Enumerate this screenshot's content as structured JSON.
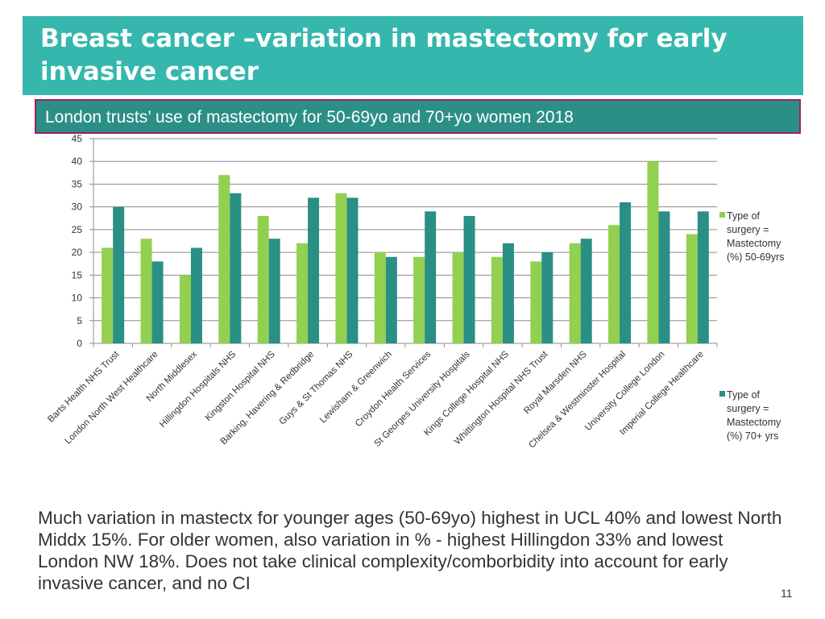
{
  "header": {
    "title": "Breast cancer –variation in mastectomy for early invasive cancer",
    "subtitle": "London trusts’ use of  mastectomy for 50-69yo and 70+yo women 2018"
  },
  "chart_data": {
    "type": "bar",
    "title": "",
    "xlabel": "",
    "ylabel": "",
    "ylim": [
      0,
      45
    ],
    "yticks": [
      0,
      5,
      10,
      15,
      20,
      25,
      30,
      35,
      40,
      45
    ],
    "grid": true,
    "categories": [
      "Barts Health NHS Trust",
      "London North West Healthcare",
      "North Middlesex",
      "Hillingdon Hospitals NHS",
      "Kingston Hospital NHS",
      "Barking, Havering & Redbridge",
      "Guys & St Thomas NHS",
      "Lewisham & Greenwich",
      "Croydon Health Services",
      "St Georges University Hospitals",
      "Kings College Hospital NHS",
      "Whittington Hospital NHS Trust",
      "Royal Marsden NHS",
      "Chelsea & Westminster Hospital",
      "University College London",
      "Imperial College Healthcare"
    ],
    "series": [
      {
        "name": "Type of surgery = Mastectomy (%) 50-69yrs",
        "color": "#92d050",
        "legend_lines": [
          "Type of",
          "surgery =",
          "Mastectomy",
          "(%) 50-69yrs"
        ],
        "values": [
          21,
          23,
          15,
          37,
          28,
          22,
          33,
          20,
          19,
          20,
          19,
          18,
          22,
          26,
          40,
          24
        ]
      },
      {
        "name": "Type of surgery = Mastectomy (%) 70+ yrs",
        "color": "#2a8f85",
        "legend_lines": [
          "Type of",
          "surgery =",
          "Mastectomy",
          "(%) 70+ yrs"
        ],
        "values": [
          30,
          18,
          21,
          33,
          23,
          32,
          32,
          19,
          29,
          28,
          22,
          20,
          23,
          31,
          29,
          29
        ]
      }
    ]
  },
  "body": {
    "text": "Much variation in mastectx for younger ages (50-69yo)  highest in UCL 40% and lowest North Middx 15%.  For older women, also variation in %  - highest Hillingdon 33% and lowest London NW 18%.  Does not take clinical complexity/comborbidity into account for early invasive cancer, and no CI"
  },
  "footer": {
    "page_number": "11"
  }
}
